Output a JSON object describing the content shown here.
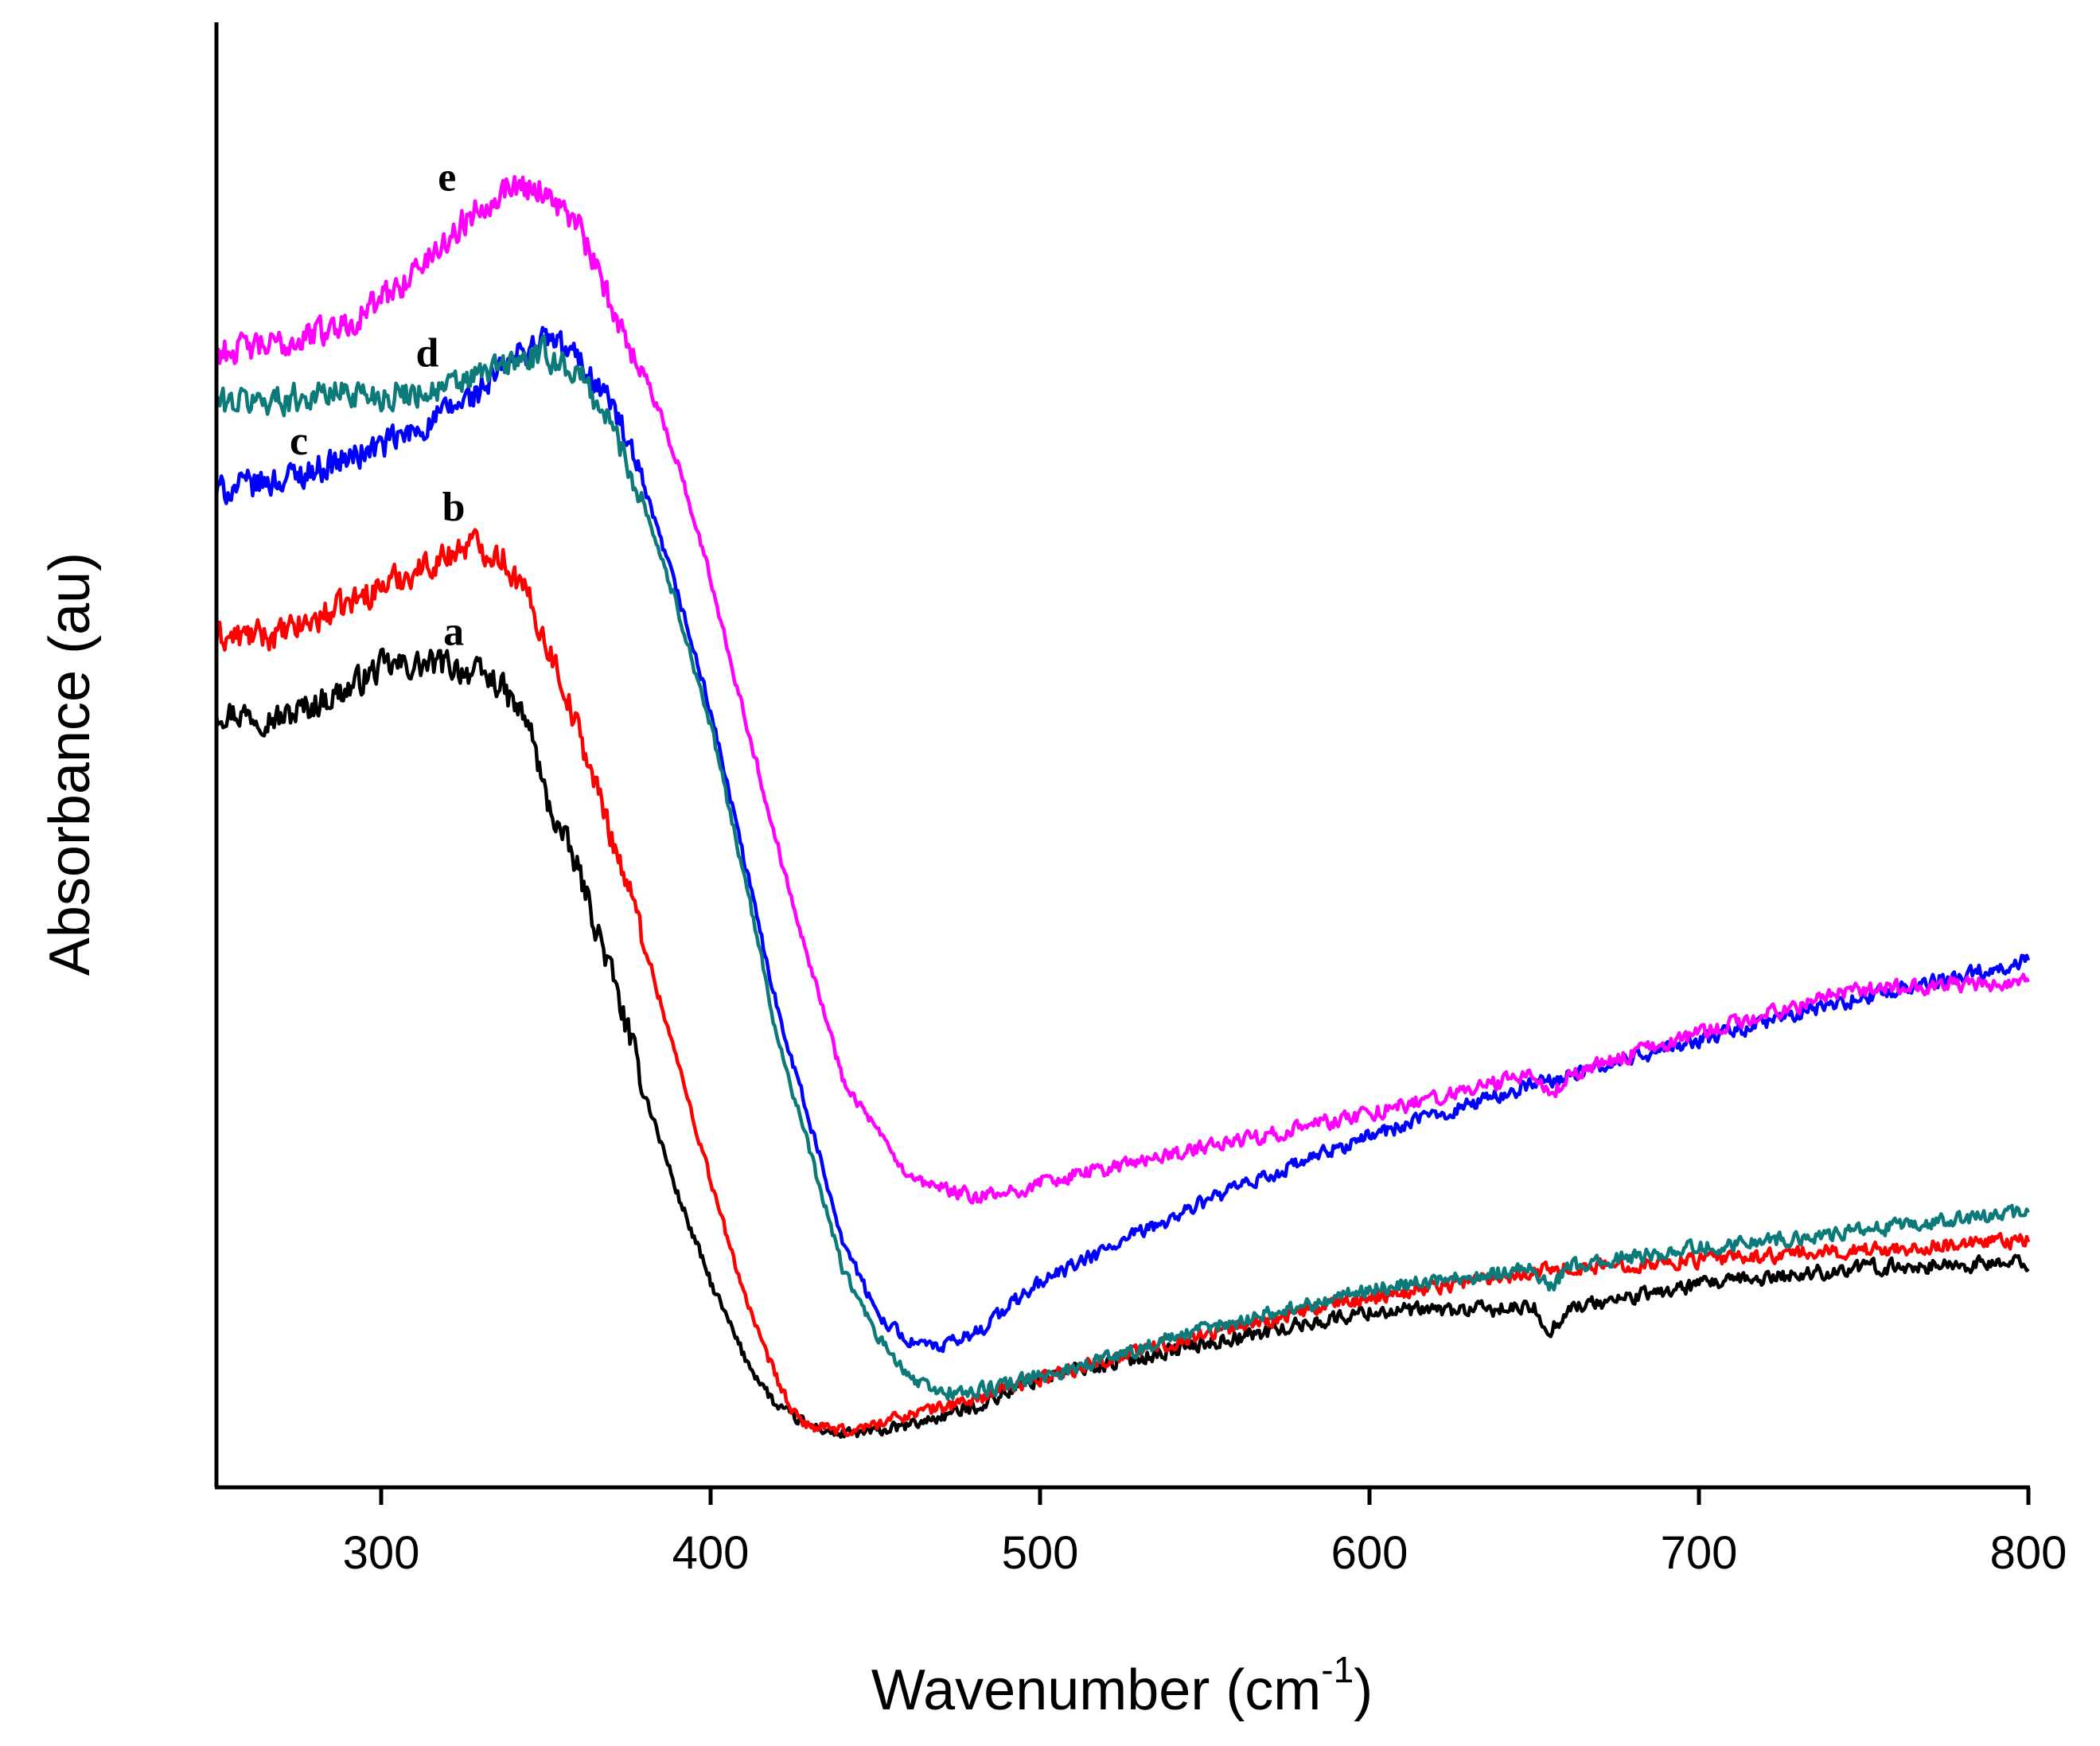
{
  "chart_data": {
    "type": "line",
    "xlabel": "Wavenumber (cm",
    "xlabel_sup": "-1",
    "xlabel_close": ")",
    "ylabel": "Absorbance (au)",
    "xlim": [
      250,
      800
    ],
    "ylim": [
      0,
      100
    ],
    "xticks": [
      300,
      400,
      500,
      600,
      700,
      800
    ],
    "yticks_shown": false,
    "series": [
      {
        "name": "a",
        "color": "#000000",
        "x": [
          250,
          270,
          290,
          300,
          320,
          335,
          345,
          350,
          360,
          370,
          380,
          390,
          400,
          410,
          420,
          430,
          440,
          450,
          460,
          480,
          500,
          550,
          600,
          650,
          655,
          660,
          700,
          750,
          800
        ],
        "y": [
          53,
          52.5,
          54.5,
          56,
          56.2,
          55,
          52,
          47,
          42,
          35,
          27,
          20,
          14,
          9,
          5.5,
          4.2,
          3.6,
          3.8,
          4.2,
          5.5,
          7.5,
          9.8,
          12,
          12.2,
          10.6,
          12.2,
          13.8,
          15,
          15.3
        ]
      },
      {
        "name": "b",
        "color": "#ff0000",
        "x": [
          250,
          270,
          290,
          300,
          320,
          327,
          337,
          345,
          355,
          365,
          375,
          385,
          395,
          405,
          415,
          425,
          430,
          440,
          445,
          460,
          480,
          500,
          550,
          600,
          650,
          700,
          750,
          800
        ],
        "y": [
          58,
          58.2,
          60.3,
          61.5,
          63.6,
          64.5,
          63.5,
          60.5,
          55,
          48,
          41,
          33,
          25,
          17,
          10,
          5,
          4.2,
          3.8,
          4,
          5,
          6,
          7.5,
          10.5,
          13,
          14.8,
          15.5,
          16.2,
          16.8
        ]
      },
      {
        "name": "c",
        "color": "#0000ff",
        "x": [
          250,
          270,
          290,
          310,
          330,
          340,
          350,
          360,
          370,
          380,
          390,
          400,
          410,
          420,
          430,
          440,
          450,
          460,
          470,
          480,
          500,
          550,
          600,
          650,
          700,
          750,
          800
        ],
        "y": [
          68,
          68.8,
          70.2,
          72,
          74.8,
          77,
          78.5,
          77,
          74,
          68,
          61,
          53,
          43,
          33,
          25,
          17,
          12,
          10,
          9.5,
          10.5,
          14,
          19.5,
          24,
          27.5,
          30.5,
          33.5,
          36
        ]
      },
      {
        "name": "d",
        "color": "#0d7a7a",
        "x": [
          250,
          270,
          290,
          300,
          320,
          340,
          350,
          360,
          370,
          380,
          390,
          400,
          410,
          420,
          430,
          440,
          450,
          460,
          470,
          480,
          500,
          550,
          600,
          650,
          655,
          660,
          700,
          750,
          800
        ],
        "y": [
          74,
          74.3,
          74.8,
          74.5,
          75,
          76.8,
          77.3,
          76,
          72.5,
          67,
          60,
          52,
          42,
          31,
          23,
          15,
          10.5,
          7.5,
          6.5,
          6.5,
          7.5,
          10.8,
          13.5,
          15,
          13.6,
          15,
          16.4,
          17.5,
          18.8
        ]
      },
      {
        "name": "e",
        "color": "#ff00ff",
        "x": [
          250,
          270,
          290,
          300,
          315,
          330,
          340,
          350,
          360,
          370,
          380,
          390,
          400,
          410,
          420,
          430,
          440,
          460,
          480,
          490,
          500,
          550,
          600,
          650,
          655,
          660,
          700,
          740,
          750,
          800
        ],
        "y": [
          77.5,
          78,
          79.5,
          81,
          84,
          87.5,
          89,
          88.5,
          86,
          80.5,
          76,
          70,
          62,
          53,
          44,
          36,
          28,
          21,
          19.8,
          20,
          20.8,
          23.2,
          25.5,
          28.2,
          26.5,
          28.2,
          31,
          33.5,
          34,
          34.5
        ]
      }
    ],
    "annotations": [
      {
        "text": "a",
        "x": 322,
        "y": 57.5
      },
      {
        "text": "b",
        "x": 322,
        "y": 66
      },
      {
        "text": "c",
        "x": 275,
        "y": 70.5
      },
      {
        "text": "d",
        "x": 314,
        "y": 76.5
      },
      {
        "text": "e",
        "x": 320,
        "y": 88.5
      }
    ]
  }
}
